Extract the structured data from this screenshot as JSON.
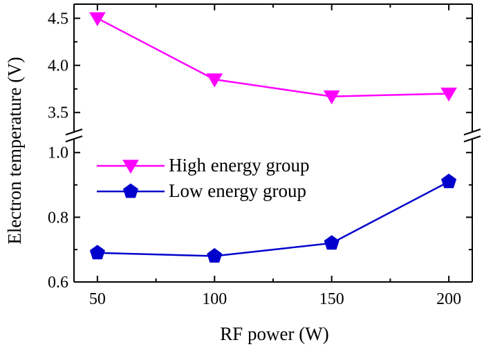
{
  "chart_data": {
    "type": "line",
    "title": "",
    "xlabel": "RF power (W)",
    "ylabel": "Electron temperature (V)",
    "x": [
      50,
      100,
      150,
      200
    ],
    "xlim": [
      40,
      210
    ],
    "xticks": [
      50,
      100,
      150,
      200
    ],
    "y_axis": {
      "broken": true,
      "upper_segment": {
        "ylim": [
          3.3,
          4.65
        ],
        "ticks": [
          3.5,
          4.0,
          4.5
        ]
      },
      "lower_segment": {
        "ylim": [
          0.6,
          1.04
        ],
        "ticks": [
          0.6,
          0.8,
          1.0
        ]
      }
    },
    "grid": false,
    "legend_placement": "center-left",
    "series": [
      {
        "name": "High energy group",
        "values": [
          4.5,
          3.85,
          3.67,
          3.7
        ],
        "color": "#ff00ff",
        "marker": "triangle-down",
        "segment": "upper"
      },
      {
        "name": "Low energy group",
        "values": [
          0.69,
          0.68,
          0.72,
          0.91
        ],
        "color": "#0000cc",
        "marker": "pentagon",
        "segment": "lower"
      }
    ]
  }
}
